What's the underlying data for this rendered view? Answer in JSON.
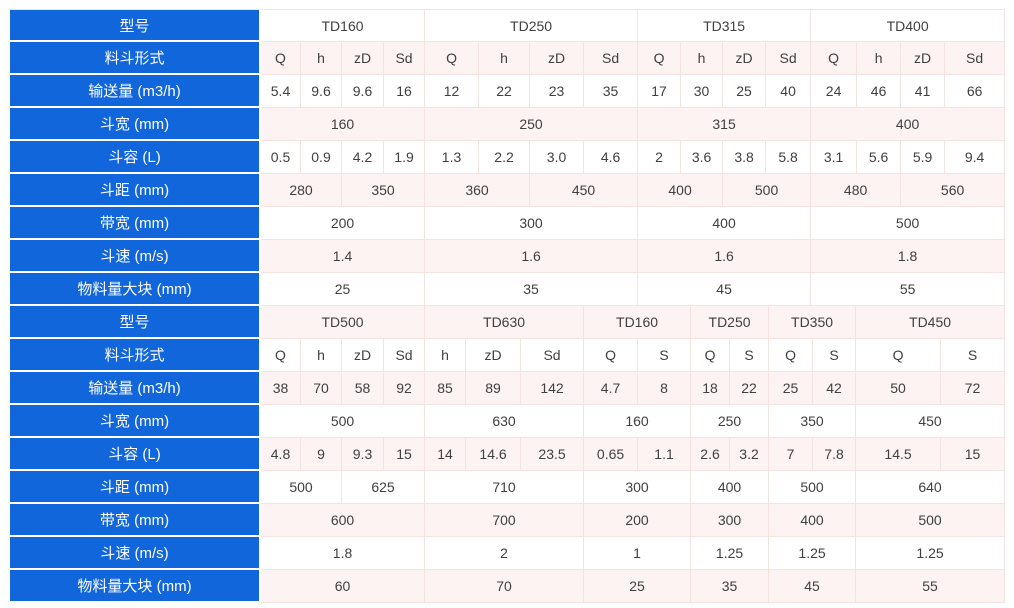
{
  "colors": {
    "header_blue": "#1166db",
    "row_pink": "#fdf3f2",
    "row_white": "#ffffff",
    "border_light": "#f5e3e1",
    "text_dark": "#404040",
    "label_text": "#ffffff"
  },
  "table": {
    "description_rows": [
      "型号",
      "料斗形式",
      "输送量 (m3/h)",
      "斗宽 (mm)",
      "斗容 (L)",
      "斗距 (mm)",
      "带宽 (mm)",
      "斗速 (m/s)",
      "物料量大块 (mm)"
    ],
    "sections": [
      {
        "name": "section-a",
        "models": [
          "TD160",
          "TD250",
          "TD315",
          "TD400"
        ],
        "rows": [
          {
            "key": "model",
            "label": "型号",
            "cells": [
              {
                "v": "TD160",
                "s": 4
              },
              {
                "v": "TD250",
                "s": 4
              },
              {
                "v": "TD315",
                "s": 4
              },
              {
                "v": "TD400",
                "s": 4
              }
            ]
          },
          {
            "key": "bucket-type",
            "label": "料斗形式",
            "cells": [
              "Q",
              "h",
              "zD",
              "Sd",
              "Q",
              "h",
              "zD",
              "Sd",
              "Q",
              "h",
              "zD",
              "Sd",
              "Q",
              "h",
              "zD",
              "Sd"
            ]
          },
          {
            "key": "capacity",
            "label": "输送量 (m3/h)",
            "cells": [
              "5.4",
              "9.6",
              "9.6",
              "16",
              "12",
              "22",
              "23",
              "35",
              "17",
              "30",
              "25",
              "40",
              "24",
              "46",
              "41",
              "66"
            ]
          },
          {
            "key": "bucket-width",
            "label": "斗宽 (mm)",
            "cells": [
              {
                "v": "160",
                "s": 4
              },
              {
                "v": "250",
                "s": 4
              },
              {
                "v": "315",
                "s": 4
              },
              {
                "v": "400",
                "s": 4
              }
            ]
          },
          {
            "key": "bucket-volume",
            "label": "斗容 (L)",
            "cells": [
              "0.5",
              "0.9",
              "4.2",
              "1.9",
              "1.3",
              "2.2",
              "3.0",
              "4.6",
              "2",
              "3.6",
              "3.8",
              "5.8",
              "3.1",
              "5.6",
              "5.9",
              "9.4"
            ]
          },
          {
            "key": "bucket-pitch",
            "label": "斗距 (mm)",
            "cells": [
              {
                "v": "280",
                "s": 2
              },
              {
                "v": "350",
                "s": 2
              },
              {
                "v": "360",
                "s": 2
              },
              {
                "v": "450",
                "s": 2
              },
              {
                "v": "400",
                "s": 2
              },
              {
                "v": "500",
                "s": 2
              },
              {
                "v": "480",
                "s": 2
              },
              {
                "v": "560",
                "s": 2
              }
            ]
          },
          {
            "key": "belt-width",
            "label": "带宽 (mm)",
            "cells": [
              {
                "v": "200",
                "s": 4
              },
              {
                "v": "300",
                "s": 4
              },
              {
                "v": "400",
                "s": 4
              },
              {
                "v": "500",
                "s": 4
              }
            ]
          },
          {
            "key": "bucket-speed",
            "label": "斗速 (m/s)",
            "cells": [
              {
                "v": "1.4",
                "s": 4
              },
              {
                "v": "1.6",
                "s": 4
              },
              {
                "v": "1.6",
                "s": 4
              },
              {
                "v": "1.8",
                "s": 4
              }
            ]
          },
          {
            "key": "max-lump",
            "label": "物料量大块 (mm)",
            "cells": [
              {
                "v": "25",
                "s": 4
              },
              {
                "v": "35",
                "s": 4
              },
              {
                "v": "45",
                "s": 4
              },
              {
                "v": "55",
                "s": 4
              }
            ]
          }
        ]
      },
      {
        "name": "section-b",
        "models": [
          "TD500",
          "TD630",
          "TD160",
          "TD250",
          "TD350",
          "TD450"
        ],
        "rows": [
          {
            "key": "model",
            "label": "型号",
            "cells": [
              {
                "v": "TD500",
                "s": 4
              },
              {
                "v": "TD630",
                "s": 3
              },
              {
                "v": "TD160",
                "s": 2
              },
              {
                "v": "TD250",
                "s": 2
              },
              {
                "v": "TD350",
                "s": 2
              },
              {
                "v": "TD450",
                "s": 2
              }
            ]
          },
          {
            "key": "bucket-type",
            "label": "料斗形式",
            "cells": [
              "Q",
              "h",
              "zD",
              "Sd",
              "h",
              "zD",
              "Sd",
              "Q",
              "S",
              "Q",
              "S",
              "Q",
              "S",
              "Q",
              "S"
            ]
          },
          {
            "key": "capacity",
            "label": "输送量 (m3/h)",
            "cells": [
              "38",
              "70",
              "58",
              "92",
              "85",
              "89",
              "142",
              "4.7",
              "8",
              "18",
              "22",
              "25",
              "42",
              "50",
              "72"
            ]
          },
          {
            "key": "bucket-width",
            "label": "斗宽 (mm)",
            "cells": [
              {
                "v": "500",
                "s": 4
              },
              {
                "v": "630",
                "s": 3
              },
              {
                "v": "160",
                "s": 2
              },
              {
                "v": "250",
                "s": 2
              },
              {
                "v": "350",
                "s": 2
              },
              {
                "v": "450",
                "s": 2
              }
            ]
          },
          {
            "key": "bucket-volume",
            "label": "斗容 (L)",
            "cells": [
              "4.8",
              "9",
              "9.3",
              "15",
              "14",
              "14.6",
              "23.5",
              "0.65",
              "1.1",
              "2.6",
              "3.2",
              "7",
              "7.8",
              "14.5",
              "15"
            ]
          },
          {
            "key": "bucket-pitch",
            "label": "斗距 (mm)",
            "cells": [
              {
                "v": "500",
                "s": 2
              },
              {
                "v": "625",
                "s": 2
              },
              {
                "v": "710",
                "s": 3
              },
              {
                "v": "300",
                "s": 2
              },
              {
                "v": "400",
                "s": 2
              },
              {
                "v": "500",
                "s": 2
              },
              {
                "v": "640",
                "s": 2
              }
            ]
          },
          {
            "key": "belt-width",
            "label": "带宽 (mm)",
            "cells": [
              {
                "v": "600",
                "s": 4
              },
              {
                "v": "700",
                "s": 3
              },
              {
                "v": "200",
                "s": 2
              },
              {
                "v": "300",
                "s": 2
              },
              {
                "v": "400",
                "s": 2
              },
              {
                "v": "500",
                "s": 2
              }
            ]
          },
          {
            "key": "bucket-speed",
            "label": "斗速 (m/s)",
            "cells": [
              {
                "v": "1.8",
                "s": 4
              },
              {
                "v": "2",
                "s": 3
              },
              {
                "v": "1",
                "s": 2
              },
              {
                "v": "1.25",
                "s": 2
              },
              {
                "v": "1.25",
                "s": 2
              },
              {
                "v": "1.25",
                "s": 2
              }
            ]
          },
          {
            "key": "max-lump",
            "label": "物料量大块 (mm)",
            "cells": [
              {
                "v": "60",
                "s": 4
              },
              {
                "v": "70",
                "s": 3
              },
              {
                "v": "25",
                "s": 2
              },
              {
                "v": "35",
                "s": 2
              },
              {
                "v": "45",
                "s": 2
              },
              {
                "v": "55",
                "s": 2
              }
            ]
          }
        ]
      }
    ]
  }
}
